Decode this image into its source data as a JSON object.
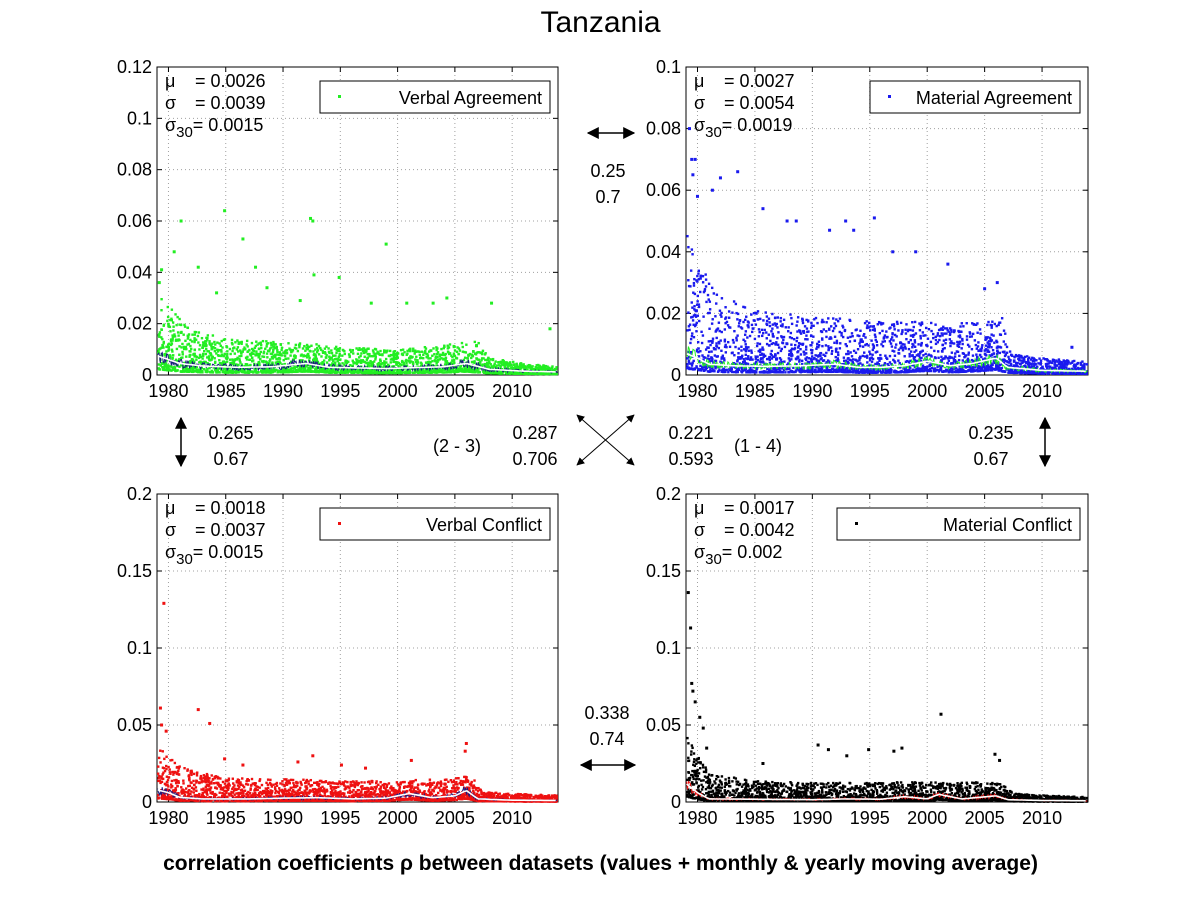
{
  "title": "Tanzania",
  "caption": "correlation coefficients ρ between datasets (values + monthly & yearly moving average)",
  "colors": {
    "verbal_agreement": "#22ee22",
    "material_agreement": "#1a1aee",
    "verbal_conflict": "#ee1111",
    "material_conflict": "#000000",
    "grid": "#a0a0a0"
  },
  "correlations": {
    "top": {
      "a": "0.25",
      "b": "0.7"
    },
    "left": {
      "a": "0.265",
      "b": "0.67"
    },
    "right": {
      "a": "0.235",
      "b": "0.67"
    },
    "bottom": {
      "a": "0.338",
      "b": "0.74"
    },
    "diag_23": {
      "a": "0.287",
      "b": "0.706",
      "label": "(2 - 3)"
    },
    "diag_14": {
      "a": "0.221",
      "b": "0.593",
      "label": "(1 - 4)"
    }
  },
  "chart_data": [
    {
      "type": "scatter",
      "legend": "Verbal Agreement",
      "color": "#22ee22",
      "stats": {
        "mu": "= 0.0026",
        "sigma": "= 0.0039",
        "sigma30": "= 0.0015"
      },
      "xlim": [
        1979,
        2014
      ],
      "ylim": [
        0,
        0.12
      ],
      "x_ticks": [
        "1980",
        "1985",
        "1990",
        "1995",
        "2000",
        "2005",
        "2010"
      ],
      "y_ticks": [
        "0",
        "0.02",
        "0.04",
        "0.06",
        "0.08",
        "0.1",
        "0.12"
      ],
      "grid": true,
      "legend_position": "top-right",
      "ma_yearly": [
        [
          1979,
          0.0075
        ],
        [
          1980,
          0.006
        ],
        [
          1981,
          0.0045
        ],
        [
          1983,
          0.0035
        ],
        [
          1986,
          0.003
        ],
        [
          1989,
          0.0032
        ],
        [
          1992,
          0.0045
        ],
        [
          1994,
          0.003
        ],
        [
          1996,
          0.0028
        ],
        [
          1999,
          0.0025
        ],
        [
          2001,
          0.0028
        ],
        [
          2004,
          0.0032
        ],
        [
          2006,
          0.0045
        ],
        [
          2008,
          0.0022
        ],
        [
          2011,
          0.0015
        ],
        [
          2014,
          0.0012
        ]
      ],
      "envelope": [
        [
          1979,
          0.035
        ],
        [
          1980,
          0.025
        ],
        [
          1982,
          0.017
        ],
        [
          1985,
          0.013
        ],
        [
          1990,
          0.012
        ],
        [
          1995,
          0.01
        ],
        [
          2000,
          0.009
        ],
        [
          2005,
          0.011
        ],
        [
          2007,
          0.012
        ],
        [
          2008,
          0.006
        ],
        [
          2011,
          0.004
        ],
        [
          2014,
          0.003
        ]
      ],
      "outliers": [
        [
          1979.2,
          0.036
        ],
        [
          1979.4,
          0.041
        ],
        [
          1980.5,
          0.048
        ],
        [
          1981.1,
          0.06
        ],
        [
          1982.6,
          0.042
        ],
        [
          1984.2,
          0.032
        ],
        [
          1984.9,
          0.064
        ],
        [
          1986.5,
          0.053
        ],
        [
          1987.6,
          0.042
        ],
        [
          1988.6,
          0.034
        ],
        [
          1991.5,
          0.029
        ],
        [
          1992.4,
          0.061
        ],
        [
          1992.6,
          0.06
        ],
        [
          1992.7,
          0.039
        ],
        [
          1994.9,
          0.038
        ],
        [
          1997.7,
          0.028
        ],
        [
          1999.0,
          0.051
        ],
        [
          2000.8,
          0.028
        ],
        [
          2003.1,
          0.028
        ],
        [
          2004.3,
          0.03
        ],
        [
          2008.2,
          0.028
        ],
        [
          2013.3,
          0.018
        ]
      ]
    },
    {
      "type": "scatter",
      "legend": "Material Agreement",
      "color": "#1a1aee",
      "stats": {
        "mu": "= 0.0027",
        "sigma": "= 0.0054",
        "sigma30": "= 0.0019"
      },
      "xlim": [
        1979,
        2014
      ],
      "ylim": [
        0,
        0.1
      ],
      "x_ticks": [
        "1980",
        "1985",
        "1990",
        "1995",
        "2000",
        "2005",
        "2010"
      ],
      "y_ticks": [
        "0",
        "0.02",
        "0.04",
        "0.06",
        "0.08",
        "0.1"
      ],
      "grid": true,
      "legend_position": "top-right",
      "ma_yearly": [
        [
          1979,
          0.007
        ],
        [
          1980,
          0.0055
        ],
        [
          1981,
          0.0035
        ],
        [
          1983,
          0.003
        ],
        [
          1986,
          0.0028
        ],
        [
          1989,
          0.003
        ],
        [
          1992,
          0.0035
        ],
        [
          1994,
          0.0025
        ],
        [
          1996,
          0.0025
        ],
        [
          1998,
          0.003
        ],
        [
          2000,
          0.0045
        ],
        [
          2002,
          0.003
        ],
        [
          2004,
          0.0038
        ],
        [
          2006,
          0.0055
        ],
        [
          2007,
          0.0025
        ],
        [
          2010,
          0.0015
        ],
        [
          2014,
          0.0012
        ]
      ],
      "envelope": [
        [
          1979,
          0.045
        ],
        [
          1980,
          0.035
        ],
        [
          1982,
          0.025
        ],
        [
          1985,
          0.02
        ],
        [
          1990,
          0.018
        ],
        [
          1995,
          0.017
        ],
        [
          2000,
          0.016
        ],
        [
          2005,
          0.016
        ],
        [
          2006.5,
          0.018
        ],
        [
          2007.3,
          0.006
        ],
        [
          2010,
          0.005
        ],
        [
          2014,
          0.004
        ]
      ],
      "outliers": [
        [
          1979.3,
          0.08
        ],
        [
          1979.5,
          0.07
        ],
        [
          1979.8,
          0.07
        ],
        [
          1979.6,
          0.065
        ],
        [
          1980.0,
          0.058
        ],
        [
          1981.3,
          0.06
        ],
        [
          1982.0,
          0.064
        ],
        [
          1983.5,
          0.066
        ],
        [
          1985.7,
          0.054
        ],
        [
          1987.8,
          0.05
        ],
        [
          1988.6,
          0.05
        ],
        [
          1991.5,
          0.047
        ],
        [
          1992.9,
          0.05
        ],
        [
          1993.6,
          0.047
        ],
        [
          1995.4,
          0.051
        ],
        [
          1997.0,
          0.04
        ],
        [
          1999.0,
          0.04
        ],
        [
          2001.8,
          0.036
        ],
        [
          2005.0,
          0.028
        ],
        [
          2006.1,
          0.03
        ],
        [
          2012.6,
          0.009
        ]
      ]
    },
    {
      "type": "scatter",
      "legend": "Verbal Conflict",
      "color": "#ee1111",
      "stats": {
        "mu": "= 0.0018",
        "sigma": "= 0.0037",
        "sigma30": "= 0.0015"
      },
      "xlim": [
        1979,
        2014
      ],
      "ylim": [
        0,
        0.2
      ],
      "x_ticks": [
        "1980",
        "1985",
        "1990",
        "1995",
        "2000",
        "2005",
        "2010"
      ],
      "y_ticks": [
        "0",
        "0.05",
        "0.1",
        "0.15",
        "0.2"
      ],
      "grid": true,
      "legend_position": "top-right",
      "ma_yearly": [
        [
          1979,
          0.008
        ],
        [
          1980,
          0.006
        ],
        [
          1981,
          0.003
        ],
        [
          1983,
          0.002
        ],
        [
          1987,
          0.002
        ],
        [
          1990,
          0.0025
        ],
        [
          1993,
          0.0028
        ],
        [
          1996,
          0.002
        ],
        [
          1999,
          0.0025
        ],
        [
          2001,
          0.0055
        ],
        [
          2003,
          0.0028
        ],
        [
          2005,
          0.004
        ],
        [
          2006,
          0.0075
        ],
        [
          2007,
          0.002
        ],
        [
          2010,
          0.0012
        ],
        [
          2014,
          0.001
        ]
      ],
      "envelope": [
        [
          1979,
          0.035
        ],
        [
          1980,
          0.028
        ],
        [
          1982,
          0.02
        ],
        [
          1985,
          0.015
        ],
        [
          1990,
          0.014
        ],
        [
          1995,
          0.013
        ],
        [
          2000,
          0.013
        ],
        [
          2005,
          0.014
        ],
        [
          2006.5,
          0.015
        ],
        [
          2007.5,
          0.006
        ],
        [
          2010,
          0.005
        ],
        [
          2014,
          0.004
        ]
      ],
      "outliers": [
        [
          1979.6,
          0.129
        ],
        [
          1979.3,
          0.061
        ],
        [
          1979.4,
          0.05
        ],
        [
          1979.8,
          0.046
        ],
        [
          1982.6,
          0.06
        ],
        [
          1983.6,
          0.051
        ],
        [
          1984.9,
          0.028
        ],
        [
          1986.5,
          0.024
        ],
        [
          1991.3,
          0.026
        ],
        [
          1992.6,
          0.03
        ],
        [
          1995.1,
          0.024
        ],
        [
          1997.2,
          0.022
        ],
        [
          2001.2,
          0.027
        ],
        [
          2006.0,
          0.038
        ],
        [
          2005.9,
          0.033
        ]
      ]
    },
    {
      "type": "scatter",
      "legend": "Material Conflict",
      "color": "#000000",
      "stats": {
        "mu": "= 0.0017",
        "sigma": "= 0.0042",
        "sigma30": "= 0.002"
      },
      "xlim": [
        1979,
        2014
      ],
      "ylim": [
        0,
        0.2
      ],
      "x_ticks": [
        "1980",
        "1985",
        "1990",
        "1995",
        "2000",
        "2005",
        "2010"
      ],
      "y_ticks": [
        "0",
        "0.05",
        "0.1",
        "0.15",
        "0.2"
      ],
      "grid": true,
      "legend_position": "top-right",
      "ma_yearly": [
        [
          1979,
          0.012
        ],
        [
          1980,
          0.006
        ],
        [
          1981,
          0.002
        ],
        [
          1985,
          0.0018
        ],
        [
          1990,
          0.0015
        ],
        [
          1993,
          0.002
        ],
        [
          1996,
          0.0018
        ],
        [
          1998,
          0.0035
        ],
        [
          2000,
          0.002
        ],
        [
          2001,
          0.005
        ],
        [
          2003,
          0.002
        ],
        [
          2006,
          0.004
        ],
        [
          2007,
          0.0015
        ],
        [
          2010,
          0.001
        ],
        [
          2014,
          0.0008
        ]
      ],
      "envelope": [
        [
          1979,
          0.04
        ],
        [
          1980,
          0.03
        ],
        [
          1981,
          0.018
        ],
        [
          1985,
          0.013
        ],
        [
          1990,
          0.012
        ],
        [
          1995,
          0.012
        ],
        [
          2000,
          0.012
        ],
        [
          2005,
          0.012
        ],
        [
          2006.5,
          0.012
        ],
        [
          2007.5,
          0.005
        ],
        [
          2010,
          0.004
        ],
        [
          2014,
          0.003
        ]
      ],
      "outliers": [
        [
          1979.2,
          0.136
        ],
        [
          1979.4,
          0.113
        ],
        [
          1979.5,
          0.077
        ],
        [
          1979.6,
          0.072
        ],
        [
          1979.8,
          0.065
        ],
        [
          1980.2,
          0.055
        ],
        [
          1980.5,
          0.048
        ],
        [
          1980.8,
          0.035
        ],
        [
          1985.7,
          0.025
        ],
        [
          1990.5,
          0.037
        ],
        [
          1991.4,
          0.034
        ],
        [
          1993.0,
          0.03
        ],
        [
          1994.9,
          0.034
        ],
        [
          1997.1,
          0.033
        ],
        [
          1997.8,
          0.035
        ],
        [
          2001.2,
          0.057
        ],
        [
          2005.9,
          0.031
        ],
        [
          2006.3,
          0.027
        ]
      ]
    }
  ]
}
